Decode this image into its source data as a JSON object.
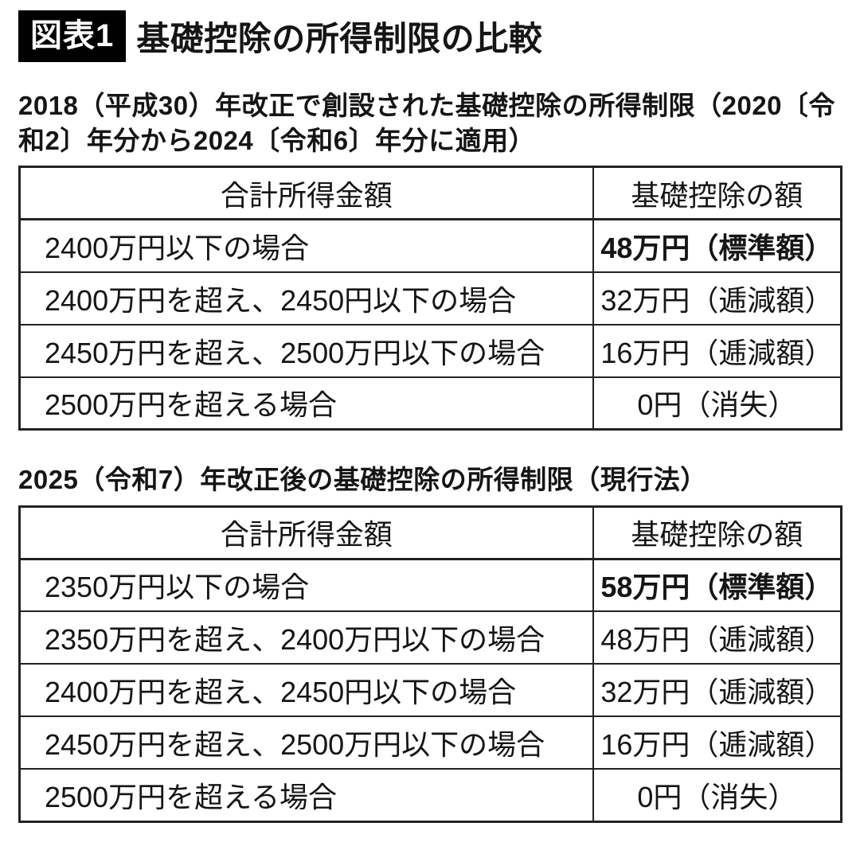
{
  "figure_label": "図表1",
  "title": "基礎控除の所得制限の比較",
  "colors": {
    "background": "#ffffff",
    "text": "#151515",
    "border": "#222222",
    "label_bg": "#000000",
    "label_fg": "#ffffff"
  },
  "sections": [
    {
      "heading": "2018（平成30）年改正で創設された基礎控除の所得制限（2020〔令和2〕年分から2024〔令和6〕年分に適用）",
      "table": {
        "headers": [
          "合計所得金額",
          "基礎控除の額"
        ],
        "rows": [
          {
            "income": "2400万円以下の場合",
            "deduction": "48万円（標準額）"
          },
          {
            "income": "2400万円を超え、2450円以下の場合",
            "deduction": "32万円（逓減額）"
          },
          {
            "income": "2450万円を超え、2500万円以下の場合",
            "deduction": "16万円（逓減額）"
          },
          {
            "income": "2500万円を超える場合",
            "deduction": "0円（消失）"
          }
        ]
      }
    },
    {
      "heading": "2025（令和7）年改正後の基礎控除の所得制限（現行法）",
      "table": {
        "headers": [
          "合計所得金額",
          "基礎控除の額"
        ],
        "rows": [
          {
            "income": "2350万円以下の場合",
            "deduction": "58万円（標準額）"
          },
          {
            "income": "2350万円を超え、2400万円以下の場合",
            "deduction": "48万円（逓減額）"
          },
          {
            "income": "2400万円を超え、2450円以下の場合",
            "deduction": "32万円（逓減額）"
          },
          {
            "income": "2450万円を超え、2500万円以下の場合",
            "deduction": "16万円（逓減額）"
          },
          {
            "income": "2500万円を超える場合",
            "deduction": "0円（消失）"
          }
        ]
      }
    }
  ]
}
